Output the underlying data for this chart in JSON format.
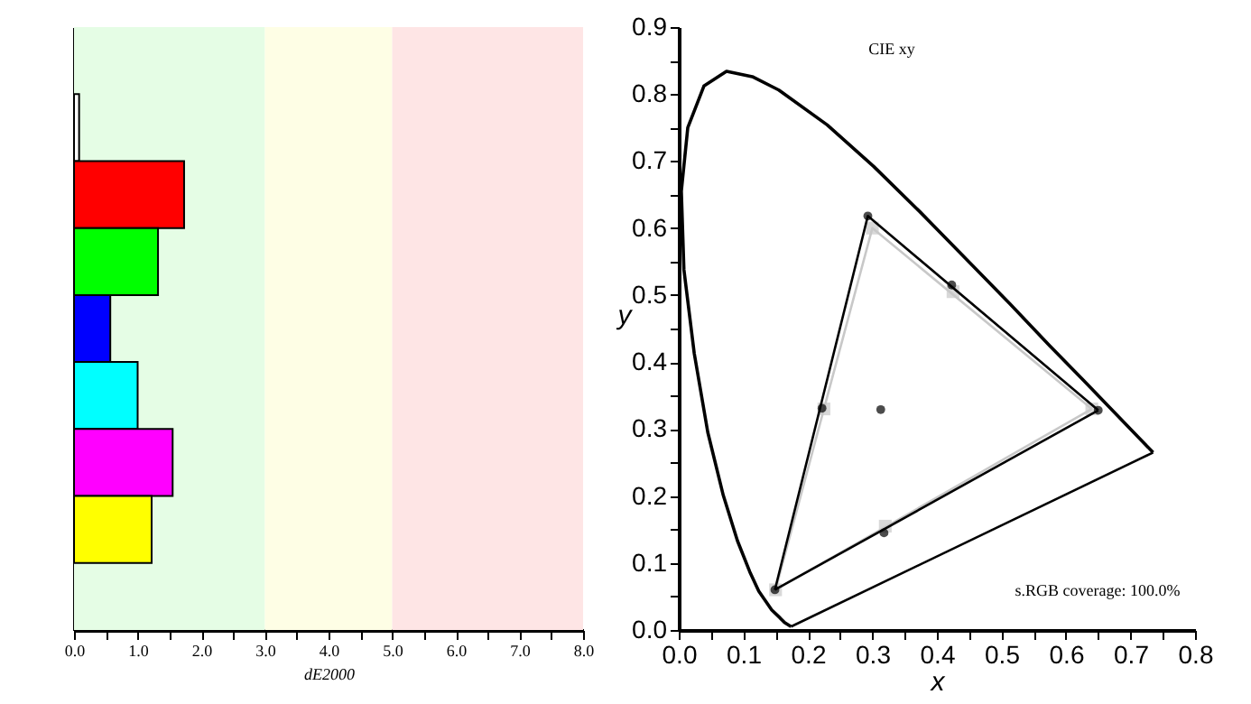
{
  "chart_data": [
    {
      "type": "bar",
      "orientation": "horizontal",
      "xlabel": "dE2000",
      "tick_labels": "x",
      "categories": [
        null,
        null,
        null,
        null,
        null,
        null,
        null,
        null,
        null
      ],
      "values": [
        null,
        0.08,
        1.73,
        1.32,
        0.57,
        1.0,
        1.55,
        1.22,
        null
      ],
      "colors": [
        "#ffffff",
        "#ffffff",
        "#ff0000",
        "#00ff00",
        "#0000ff",
        "#00ffff",
        "#ff00ff",
        "#ffff00",
        "#ffffff"
      ],
      "xlim": [
        0,
        8
      ],
      "xticks": [
        {
          "value": 0,
          "label": "0.0"
        },
        {
          "value": 0.5,
          "label": null
        },
        {
          "value": 1,
          "label": "1.0"
        },
        {
          "value": 1.5,
          "label": null
        },
        {
          "value": 2,
          "label": "2.0"
        },
        {
          "value": 2.5,
          "label": null
        },
        {
          "value": 3,
          "label": "3.0"
        },
        {
          "value": 3.5,
          "label": null
        },
        {
          "value": 4,
          "label": "4.0"
        },
        {
          "value": 4.5,
          "label": null
        },
        {
          "value": 5,
          "label": "5.0"
        },
        {
          "value": 5.5,
          "label": null
        },
        {
          "value": 6,
          "label": "6.0"
        },
        {
          "value": 6.5,
          "label": null
        },
        {
          "value": 7,
          "label": "7.0"
        },
        {
          "value": 7.5,
          "label": null
        },
        {
          "value": 8,
          "label": "8.0"
        }
      ],
      "bands": [
        {
          "axis": "x",
          "from": 0,
          "to": 3,
          "color": "#e5fde5"
        },
        {
          "axis": "x",
          "from": 3,
          "to": 5,
          "color": "#fefee5"
        },
        {
          "axis": "x",
          "from": 5,
          "to": 8,
          "color": "#fee5e5"
        }
      ],
      "grid": false
    },
    {
      "type": "line",
      "title": "CIE xy",
      "xlabel": "x",
      "ylabel": "y",
      "annotations": [
        "s.RGB coverage: 100.0%"
      ],
      "series": [
        {
          "type": "line",
          "color": "#000000",
          "marker": "none",
          "x": [
            0.174,
            0.164,
            0.157,
            0.144,
            0.124,
            0.11,
            0.091,
            0.069,
            0.045,
            0.024,
            0.008,
            0.004,
            0.014,
            0.039,
            0.074,
            0.114,
            0.155,
            0.23,
            0.302,
            0.373,
            0.444,
            0.513,
            0.575,
            0.627,
            0.692,
            0.719,
            0.735
          ],
          "values": [
            0.005,
            0.011,
            0.018,
            0.03,
            0.058,
            0.087,
            0.133,
            0.201,
            0.295,
            0.413,
            0.538,
            0.655,
            0.75,
            0.812,
            0.834,
            0.826,
            0.806,
            0.754,
            0.692,
            0.625,
            0.555,
            0.487,
            0.424,
            0.373,
            0.308,
            0.281,
            0.265
          ]
        },
        {
          "type": "line",
          "color": "#000000",
          "marker": "none",
          "x": [
            0.174,
            0.735
          ],
          "values": [
            0.005,
            0.265
          ]
        },
        {
          "type": "line",
          "color": "#c8c8c8",
          "marker": "none",
          "x": [
            0.64,
            0.3,
            0.15
          ],
          "values": [
            0.33,
            0.6,
            0.06
          ]
        },
        {
          "type": "line",
          "color": "#c8c8c8",
          "marker": "none",
          "x": [
            0.15,
            0.64
          ],
          "values": [
            0.06,
            0.33
          ]
        },
        {
          "type": "scatter",
          "color": "#c8c8c8",
          "marker": "square",
          "x": [
            0.64,
            0.3,
            0.15,
            0.425,
            0.225,
            0.32
          ],
          "values": [
            0.33,
            0.6,
            0.06,
            0.505,
            0.33,
            0.155
          ]
        },
        {
          "type": "line",
          "color": "#000000",
          "marker": "none",
          "x": [
            0.65,
            0.293,
            0.149
          ],
          "values": [
            0.328,
            0.618,
            0.06
          ]
        },
        {
          "type": "line",
          "color": "#000000",
          "marker": "none",
          "x": [
            0.149,
            0.65
          ],
          "values": [
            0.06,
            0.328
          ]
        },
        {
          "type": "scatter",
          "color": "#000000",
          "marker": "circle",
          "x": [
            0.65,
            0.293,
            0.149,
            0.423,
            0.222,
            0.318,
            0.313
          ],
          "values": [
            0.328,
            0.618,
            0.06,
            0.515,
            0.331,
            0.145,
            0.329
          ]
        }
      ],
      "xlim": [
        0,
        0.8
      ],
      "ylim": [
        0,
        0.9
      ],
      "xticks": [
        {
          "value": 0,
          "label": "0.0"
        },
        {
          "value": 0.05,
          "label": null
        },
        {
          "value": 0.1,
          "label": "0.1"
        },
        {
          "value": 0.15,
          "label": null
        },
        {
          "value": 0.2,
          "label": "0.2"
        },
        {
          "value": 0.25,
          "label": null
        },
        {
          "value": 0.3,
          "label": "0.3"
        },
        {
          "value": 0.35,
          "label": null
        },
        {
          "value": 0.4,
          "label": "0.4"
        },
        {
          "value": 0.45,
          "label": null
        },
        {
          "value": 0.5,
          "label": "0.5"
        },
        {
          "value": 0.55,
          "label": null
        },
        {
          "value": 0.6,
          "label": "0.6"
        },
        {
          "value": 0.65,
          "label": null
        },
        {
          "value": 0.7,
          "label": "0.7"
        },
        {
          "value": 0.75,
          "label": null
        },
        {
          "value": 0.8,
          "label": "0.8"
        }
      ],
      "yticks": [
        {
          "value": 0,
          "label": "0.0"
        },
        {
          "value": 0.05,
          "label": null
        },
        {
          "value": 0.1,
          "label": "0.1"
        },
        {
          "value": 0.15,
          "label": null
        },
        {
          "value": 0.2,
          "label": "0.2"
        },
        {
          "value": 0.25,
          "label": null
        },
        {
          "value": 0.3,
          "label": "0.3"
        },
        {
          "value": 0.35,
          "label": null
        },
        {
          "value": 0.4,
          "label": "0.4"
        },
        {
          "value": 0.45,
          "label": null
        },
        {
          "value": 0.5,
          "label": "0.5"
        },
        {
          "value": 0.55,
          "label": null
        },
        {
          "value": 0.6,
          "label": "0.6"
        },
        {
          "value": 0.65,
          "label": null
        },
        {
          "value": 0.7,
          "label": "0.7"
        },
        {
          "value": 0.75,
          "label": null
        },
        {
          "value": 0.8,
          "label": "0.8"
        },
        {
          "value": 0.85,
          "label": null
        },
        {
          "value": 0.9,
          "label": "0.9"
        }
      ],
      "grid": false,
      "legend": false
    }
  ]
}
